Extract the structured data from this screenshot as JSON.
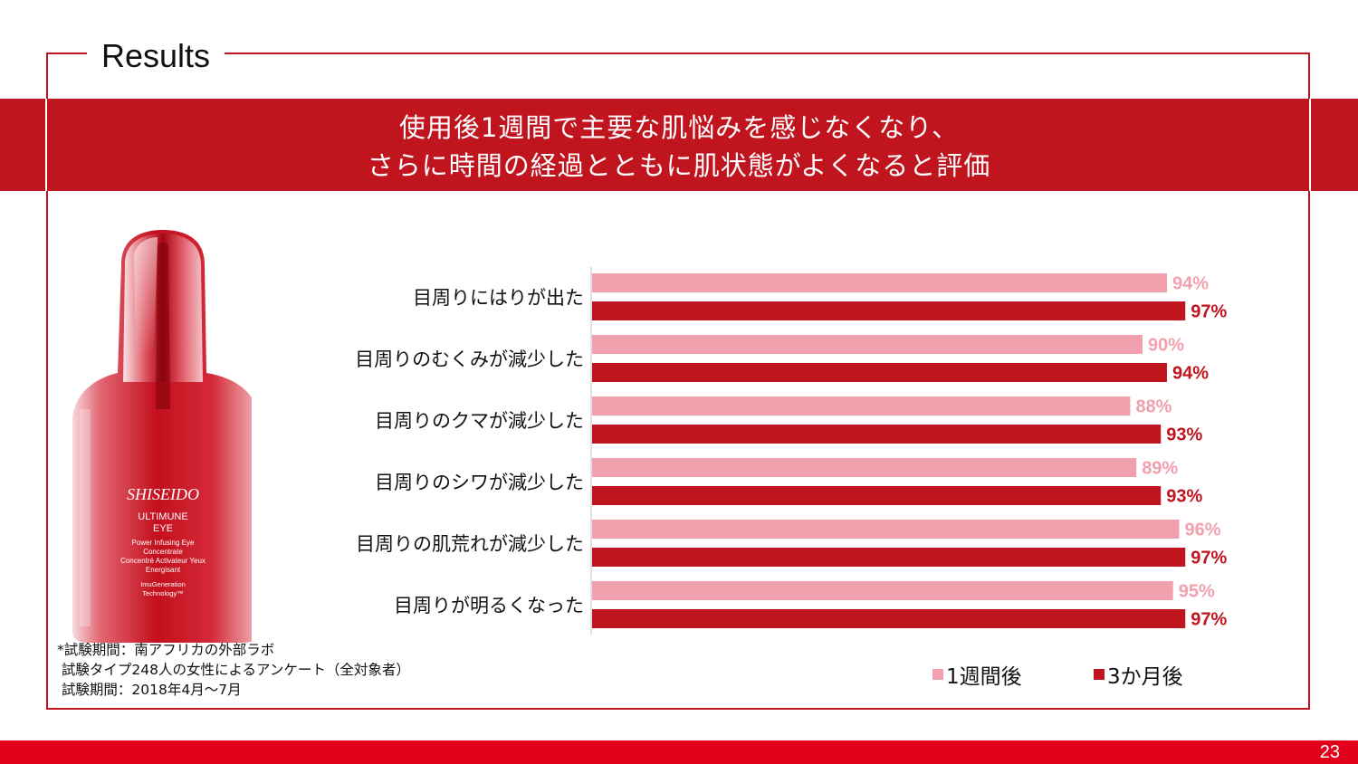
{
  "slide": {
    "section_title": "Results",
    "headline_line1": "使用後1週間で主要な肌悩みを感じなくなり、",
    "headline_line2": "さらに時間の経過とともに肌状態がよくなると評価",
    "page_number": "23",
    "colors": {
      "brand_red": "#c0141e",
      "light_pink": "#f2a0ad",
      "bottom_bar": "#e3001b"
    }
  },
  "product": {
    "brand": "SHISEIDO",
    "name_line1": "ULTIMUNE",
    "name_line2": "EYE",
    "desc_line1": "Power Infusing Eye",
    "desc_line2": "Concentrate",
    "desc_line3": "Concentré Activateur Yeux",
    "desc_line4": "Energisant",
    "tech_line1": "ImuGeneration",
    "tech_line2": "Technology™"
  },
  "footnote": {
    "line1": "*試験期間：南アフリカの外部ラボ",
    "line2": " 試験タイプ248人の女性によるアンケート（全対象者）",
    "line3": " 試験期間：2018年4月～7月"
  },
  "chart_data": {
    "type": "bar",
    "orientation": "horizontal",
    "categories": [
      "目周りにはりが出た",
      "目周りのむくみが減少した",
      "目周りのクマが減少した",
      "目周りのシワが減少した",
      "目周りの肌荒れが減少した",
      "目周りが明るくなった"
    ],
    "series": [
      {
        "name": "1週間後",
        "color": "#f2a0ad",
        "values": [
          94,
          90,
          88,
          89,
          96,
          95
        ],
        "labels": [
          "94%",
          "90%",
          "88%",
          "89%",
          "96%",
          "95%"
        ]
      },
      {
        "name": "3か月後",
        "color": "#c0141e",
        "values": [
          97,
          94,
          93,
          93,
          97,
          97
        ],
        "labels": [
          "97%",
          "94%",
          "93%",
          "93%",
          "97%",
          "97%"
        ]
      }
    ],
    "xlim": [
      0,
      100
    ],
    "legend": "bottom-right",
    "grid": false
  }
}
